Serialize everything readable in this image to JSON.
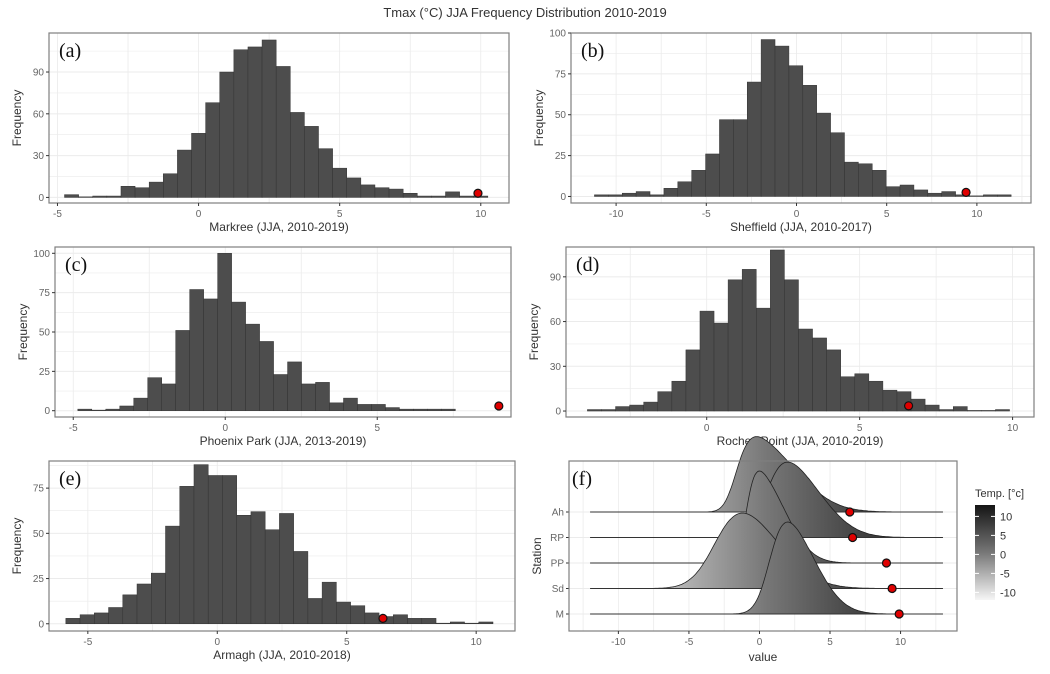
{
  "title": "Tmax (°C) JJA Frequency Distribution 2010-2019",
  "chart_data": [
    {
      "id": "a",
      "type": "bar",
      "panel_label": "(a)",
      "xlabel": "Markree (JJA, 2010-2019)",
      "ylabel": "Frequency",
      "xlim": [
        -5.3,
        11
      ],
      "ylim": [
        -4,
        118
      ],
      "xticks": [
        -5,
        0,
        5,
        10
      ],
      "yticks": [
        0,
        30,
        60,
        90
      ],
      "bin_width": 0.5,
      "bin_starts": [
        -4.75,
        -4.25,
        -3.75,
        -3.25,
        -2.75,
        -2.25,
        -1.75,
        -1.25,
        -0.75,
        -0.25,
        0.25,
        0.75,
        1.25,
        1.75,
        2.25,
        2.75,
        3.25,
        3.75,
        4.25,
        4.75,
        5.25,
        5.75,
        6.25,
        6.75,
        7.25,
        7.75,
        8.25,
        8.75,
        9.25,
        9.75
      ],
      "values": [
        2,
        0,
        1,
        1,
        8,
        7,
        11,
        17,
        34,
        46,
        68,
        90,
        106,
        108,
        113,
        94,
        61,
        51,
        35,
        21,
        14,
        9,
        7,
        6,
        3,
        1,
        1,
        4,
        1,
        1
      ],
      "marker": {
        "x": 9.9,
        "y": 3
      }
    },
    {
      "id": "b",
      "type": "bar",
      "panel_label": "(b)",
      "xlabel": "Sheffield (JJA, 2010-2017)",
      "ylabel": "Frequency",
      "xlim": [
        -12.5,
        13
      ],
      "ylim": [
        -4,
        100
      ],
      "xticks": [
        -10,
        -5,
        0,
        5,
        10
      ],
      "yticks": [
        0,
        25,
        50,
        75,
        100
      ],
      "bin_width": 0.77,
      "bin_starts": [
        -11.2,
        -10.43,
        -9.66,
        -8.89,
        -8.12,
        -7.35,
        -6.58,
        -5.81,
        -5.04,
        -4.27,
        -3.5,
        -2.73,
        -1.96,
        -1.19,
        -0.42,
        0.35,
        1.12,
        1.89,
        2.66,
        3.43,
        4.2,
        4.97,
        5.74,
        6.51,
        7.28,
        8.05,
        8.82,
        9.59,
        10.36,
        11.13
      ],
      "values": [
        1,
        1,
        2,
        3,
        1,
        5,
        9,
        16,
        26,
        47,
        47,
        70,
        96,
        92,
        80,
        68,
        51,
        39,
        21,
        20,
        16,
        6,
        7,
        4,
        2,
        3,
        1,
        0,
        1,
        1
      ],
      "marker": {
        "x": 9.4,
        "y": 2.5
      }
    },
    {
      "id": "c",
      "type": "bar",
      "panel_label": "(c)",
      "xlabel": "Phoenix Park (JJA, 2013-2019)",
      "ylabel": "Frequency",
      "xlim": [
        -5.6,
        9.4
      ],
      "ylim": [
        -4,
        104
      ],
      "xticks": [
        -5,
        0,
        5
      ],
      "yticks": [
        0,
        25,
        50,
        75,
        100
      ],
      "bin_width": 0.46,
      "bin_starts": [
        -4.85,
        -4.39,
        -3.93,
        -3.47,
        -3.01,
        -2.55,
        -2.09,
        -1.63,
        -1.17,
        -0.71,
        -0.25,
        0.21,
        0.67,
        1.13,
        1.59,
        2.05,
        2.51,
        2.97,
        3.43,
        3.89,
        4.35,
        4.81,
        5.27,
        5.73,
        6.19,
        6.65,
        7.11
      ],
      "values": [
        1,
        0,
        1,
        3,
        8,
        21,
        17,
        51,
        77,
        71,
        100,
        69,
        55,
        44,
        23,
        31,
        17,
        18,
        5,
        8,
        4,
        4,
        2,
        1,
        1,
        1,
        1
      ],
      "marker": {
        "x": 9.0,
        "y": 3
      }
    },
    {
      "id": "d",
      "type": "bar",
      "panel_label": "(d)",
      "xlabel": "Roches Point (JJA, 2010-2019)",
      "ylabel": "Frequency",
      "xlim": [
        -4.6,
        10.7
      ],
      "ylim": [
        -4,
        110
      ],
      "xticks": [
        0,
        5,
        10
      ],
      "yticks": [
        0,
        30,
        60,
        90
      ],
      "bin_width": 0.46,
      "bin_starts": [
        -3.9,
        -3.44,
        -2.98,
        -2.52,
        -2.06,
        -1.6,
        -1.14,
        -0.68,
        -0.22,
        0.24,
        0.7,
        1.16,
        1.62,
        2.08,
        2.54,
        3.0,
        3.46,
        3.92,
        4.38,
        4.84,
        5.3,
        5.76,
        6.22,
        6.68,
        7.14,
        7.6,
        8.06,
        8.52,
        8.98,
        9.44
      ],
      "values": [
        1,
        1,
        3,
        4,
        6,
        13,
        20,
        41,
        67,
        59,
        88,
        95,
        69,
        108,
        88,
        55,
        49,
        41,
        23,
        25,
        20,
        14,
        13,
        8,
        4,
        1,
        3,
        0,
        0,
        1
      ],
      "marker": {
        "x": 6.6,
        "y": 3.5
      }
    },
    {
      "id": "e",
      "type": "bar",
      "panel_label": "(e)",
      "xlabel": "Armagh (JJA, 2010-2018)",
      "ylabel": "Frequency",
      "xlim": [
        -6.5,
        11.5
      ],
      "ylim": [
        -4,
        90
      ],
      "xticks": [
        -5,
        0,
        5,
        10
      ],
      "yticks": [
        0,
        25,
        50,
        75
      ],
      "bin_width": 0.55,
      "bin_starts": [
        -5.85,
        -5.3,
        -4.75,
        -4.2,
        -3.65,
        -3.1,
        -2.55,
        -2.0,
        -1.45,
        -0.9,
        -0.35,
        0.2,
        0.75,
        1.3,
        1.85,
        2.4,
        2.95,
        3.5,
        4.05,
        4.6,
        5.15,
        5.7,
        6.25,
        6.8,
        7.35,
        7.9,
        8.45,
        9.0,
        9.55,
        10.1
      ],
      "values": [
        3,
        5,
        6,
        9,
        16,
        22,
        28,
        54,
        76,
        88,
        82,
        82,
        60,
        62,
        52,
        61,
        40,
        14,
        23,
        12,
        10,
        6,
        4,
        5,
        3,
        3,
        0,
        1,
        0,
        1
      ],
      "marker": {
        "x": 6.4,
        "y": 3
      }
    }
  ],
  "ridge_chart": {
    "type": "area",
    "panel_label": "(f)",
    "xlabel": "value",
    "ylabel": "Station",
    "xlim": [
      -13.5,
      14
    ],
    "xticks": [
      -10,
      -5,
      0,
      5,
      10
    ],
    "stations": [
      {
        "name": "M",
        "mean": 2.0,
        "sd": 1.5,
        "skew": 0.3,
        "max_marker": 9.9,
        "range": [
          -12,
          13
        ]
      },
      {
        "name": "Sd",
        "mean": -1.2,
        "sd": 2.2,
        "skew": 0.2,
        "max_marker": 9.4,
        "range": [
          -12,
          13
        ]
      },
      {
        "name": "PP",
        "mean": 0.0,
        "sd": 1.2,
        "skew": 0.5,
        "max_marker": 9.0,
        "range": [
          -12,
          13
        ]
      },
      {
        "name": "RP",
        "mean": 2.0,
        "sd": 1.8,
        "skew": 0.3,
        "max_marker": 6.6,
        "range": [
          -12,
          13
        ]
      },
      {
        "name": "Ah",
        "mean": -0.2,
        "sd": 1.8,
        "skew": 0.5,
        "max_marker": 6.4,
        "range": [
          -12,
          13
        ]
      }
    ],
    "legend": {
      "title": "Temp. [°c]",
      "ticks": [
        10,
        5,
        0,
        -5,
        -10
      ],
      "range": [
        -12,
        13
      ],
      "placement": "right"
    },
    "marker_color": "#e00000"
  },
  "colors": {
    "bar": "#4d4d4d",
    "grid": "#ebebeb",
    "panel_border": "#7f7f7f",
    "marker": "#e00000"
  }
}
